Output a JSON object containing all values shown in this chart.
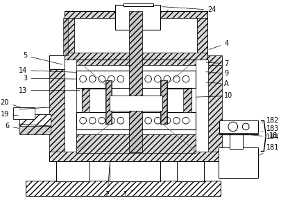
{
  "bg_color": "#ffffff",
  "line_color": "#000000",
  "fig_width": 4.06,
  "fig_height": 2.99,
  "dpi": 100,
  "label_fontsize": 7.0
}
